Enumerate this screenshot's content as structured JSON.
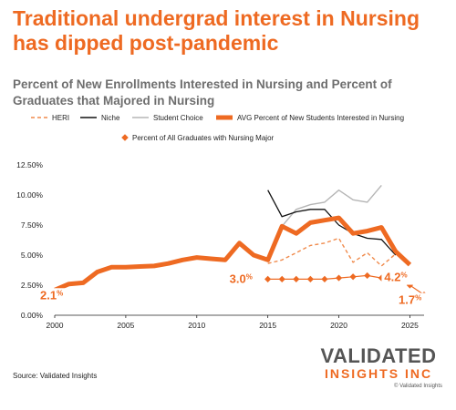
{
  "headline": "Traditional undergrad interest in Nursing has dipped post-pandemic",
  "subtitle": "Percent of New Enrollments Interested in Nursing and Percent of Graduates that Majored in Nursing",
  "source": "Source: Validated Insights",
  "logo": {
    "main": "VALIDATED",
    "sub": "INSIGHTS INC",
    "copyright": "© Validated Insights"
  },
  "colors": {
    "orange": "#ee6a22",
    "heri": "#f08a4b",
    "niche": "#111111",
    "student_choice": "#b5b5b5",
    "axis_text": "#222222"
  },
  "chart_data": {
    "type": "line",
    "title": "",
    "xlabel": "",
    "ylabel": "",
    "xlim": [
      2000,
      2026
    ],
    "ylim": [
      0,
      12.5
    ],
    "x_ticks": [
      "2000",
      "2005",
      "2010",
      "2015",
      "2020",
      "2025"
    ],
    "y_ticks": [
      "0.00%",
      "2.50%",
      "5.00%",
      "7.50%",
      "10.00%",
      "12.50%"
    ],
    "grid": false,
    "legend_position": "top",
    "series": [
      {
        "name": "HERI",
        "style": "dashed",
        "x": [
          2015,
          2016,
          2017,
          2018,
          2019,
          2020,
          2021,
          2022,
          2023,
          2024
        ],
        "y": [
          4.3,
          4.6,
          5.2,
          5.8,
          6.0,
          6.4,
          4.4,
          5.2,
          4.1,
          5.1
        ]
      },
      {
        "name": "Niche",
        "style": "solid",
        "x": [
          2015,
          2016,
          2017,
          2018,
          2019,
          2020,
          2021,
          2022,
          2023,
          2024
        ],
        "y": [
          10.4,
          8.2,
          8.6,
          8.8,
          8.8,
          7.5,
          6.8,
          6.4,
          6.3,
          5.0
        ]
      },
      {
        "name": "Student Choice",
        "style": "solid",
        "x": [
          2016,
          2017,
          2018,
          2019,
          2020,
          2021,
          2022,
          2023
        ],
        "y": [
          7.4,
          8.8,
          9.2,
          9.4,
          10.4,
          9.6,
          9.4,
          10.8
        ]
      },
      {
        "name": "AVG Percent of New Students Interested in Nursing",
        "style": "thick",
        "x": [
          2000,
          2001,
          2002,
          2003,
          2004,
          2005,
          2006,
          2007,
          2008,
          2009,
          2010,
          2011,
          2012,
          2013,
          2014,
          2015,
          2016,
          2017,
          2018,
          2019,
          2020,
          2021,
          2022,
          2023,
          2024,
          2025
        ],
        "y": [
          2.1,
          2.6,
          2.7,
          3.6,
          4.0,
          4.0,
          4.05,
          4.1,
          4.3,
          4.6,
          4.8,
          4.7,
          4.6,
          6.0,
          5.0,
          4.6,
          7.4,
          6.8,
          7.7,
          7.9,
          8.1,
          6.8,
          7.0,
          7.3,
          5.3,
          4.2
        ]
      },
      {
        "name": "Percent of All Graduates with Nursing Major",
        "style": "diamond",
        "x": [
          2015,
          2016,
          2017,
          2018,
          2019,
          2020,
          2021,
          2022,
          2023,
          2024,
          2025,
          2026
        ],
        "y": [
          3.0,
          3.0,
          3.0,
          3.0,
          3.0,
          3.1,
          3.2,
          3.3,
          3.1,
          2.9,
          2.5,
          1.7
        ]
      }
    ],
    "annotations": [
      {
        "text": "2.1%",
        "x": 2000,
        "y": 2.1
      },
      {
        "text": "3.0%",
        "x": 2015,
        "y": 3.0
      },
      {
        "text": "4.2%",
        "x": 2025,
        "y": 4.2
      },
      {
        "text": "1.7%",
        "x": 2026,
        "y": 1.7
      }
    ]
  }
}
